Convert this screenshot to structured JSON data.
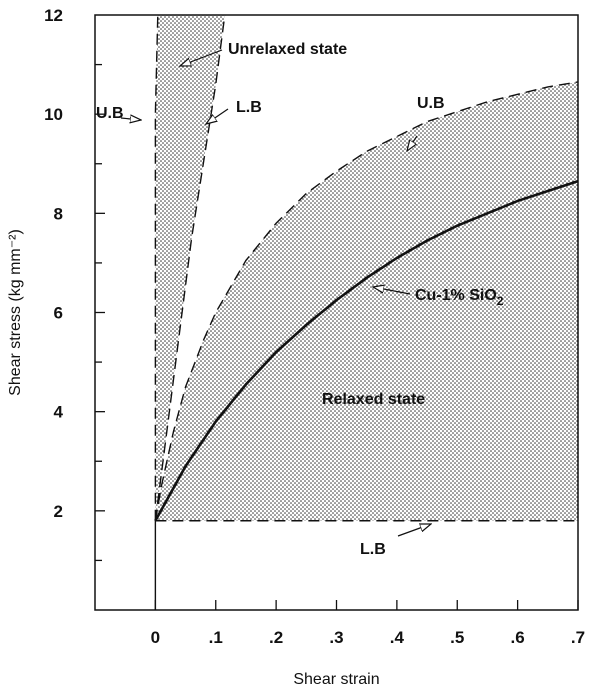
{
  "chart_data": {
    "type": "line",
    "title": "",
    "xlabel": "Shear strain",
    "ylabel": "Shear stress (kg mm⁻²)",
    "xlim": [
      -0.1,
      0.7
    ],
    "ylim": [
      0,
      12
    ],
    "x_ticks": [
      0,
      0.1,
      0.2,
      0.3,
      0.4,
      0.5,
      0.6,
      0.7
    ],
    "x_tick_labels": [
      "0",
      ".1",
      ".2",
      ".3",
      ".4",
      ".5",
      ".6",
      ".7"
    ],
    "y_ticks": [
      2,
      4,
      6,
      8,
      10,
      12
    ],
    "y_tick_labels": [
      "2",
      "4",
      "6",
      "8",
      "10",
      "12"
    ],
    "grid": false,
    "series": [
      {
        "name": "Cu-1% SiO₂",
        "style": "solid",
        "x": [
          0,
          0.05,
          0.1,
          0.15,
          0.2,
          0.25,
          0.3,
          0.35,
          0.4,
          0.45,
          0.5,
          0.55,
          0.6,
          0.65,
          0.7
        ],
        "y": [
          1.8,
          2.9,
          3.8,
          4.55,
          5.2,
          5.75,
          6.25,
          6.7,
          7.1,
          7.45,
          7.75,
          8.0,
          8.25,
          8.45,
          8.65
        ]
      },
      {
        "name": "U.B",
        "style": "dashed",
        "x": [
          0,
          0.01,
          0.03,
          0.05,
          0.08,
          0.1,
          0.15,
          0.2,
          0.25,
          0.3,
          0.35,
          0.4,
          0.45,
          0.5,
          0.55,
          0.6,
          0.65,
          0.7
        ],
        "y": [
          1.8,
          2.5,
          3.6,
          4.5,
          5.45,
          6.0,
          7.05,
          7.8,
          8.4,
          8.85,
          9.25,
          9.55,
          9.85,
          10.05,
          10.25,
          10.4,
          10.55,
          10.65
        ]
      },
      {
        "name": "L.B",
        "style": "dashed",
        "x": [
          0,
          0.7
        ],
        "y": [
          1.8,
          1.8
        ]
      },
      {
        "name": "U.B",
        "style": "dashed",
        "x": [
          0,
          0,
          0.004
        ],
        "y": [
          1.8,
          10,
          12
        ]
      },
      {
        "name": "L.B",
        "style": "dashed",
        "x": [
          0,
          0.06,
          0.1,
          0.115
        ],
        "y": [
          1.8,
          7.5,
          10.6,
          12
        ]
      }
    ],
    "shaded_regions": [
      {
        "name": "Unrelaxed state",
        "between": [
          "U.B (vertical)",
          "L.B (steep)"
        ]
      },
      {
        "name": "Relaxed state",
        "between": [
          "U.B (curve)",
          "L.B (horizontal)"
        ]
      }
    ],
    "annotations": [
      {
        "text": "Unrelaxed state",
        "x": 0.12,
        "y": 11.5
      },
      {
        "text": "U.B",
        "x": -0.07,
        "y": 10.4
      },
      {
        "text": "L.B",
        "x": 0.13,
        "y": 10.1
      },
      {
        "text": "U.B",
        "x": 0.36,
        "y": 9.9
      },
      {
        "text": "Relaxed state",
        "x": 0.37,
        "y": 4.2
      },
      {
        "text": "L.B",
        "x": 0.36,
        "y": 1.2
      }
    ],
    "curve_label": {
      "main": "Cu-1% SiO",
      "sub": "2"
    }
  }
}
